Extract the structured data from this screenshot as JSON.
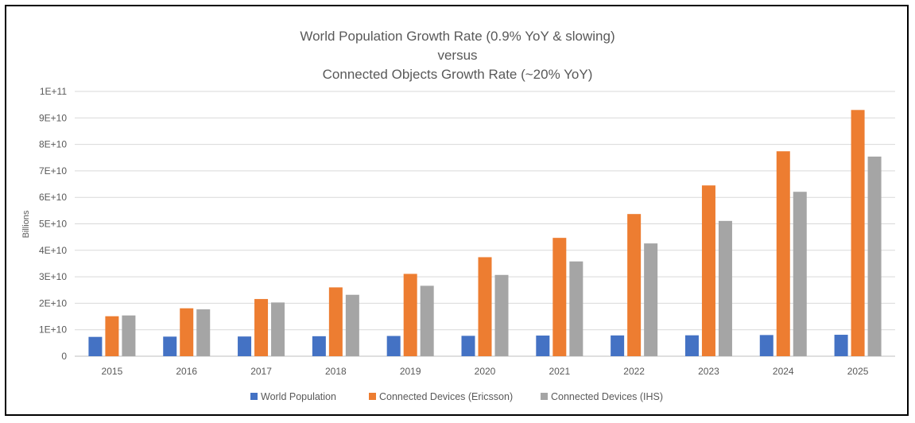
{
  "chart_data": {
    "type": "bar",
    "title_lines": [
      "World Population Growth Rate (0.9% YoY & slowing)",
      "versus",
      "Connected Objects Growth Rate (~20% YoY)"
    ],
    "xlabel": "",
    "ylabel": "Billions",
    "ylim": [
      0,
      100000000000
    ],
    "yticks": [
      0,
      10000000000,
      20000000000,
      30000000000,
      40000000000,
      50000000000,
      60000000000,
      70000000000,
      80000000000,
      90000000000,
      100000000000
    ],
    "ytick_labels": [
      "0",
      "1E+10",
      "2E+10",
      "3E+10",
      "4E+10",
      "5E+10",
      "6E+10",
      "7E+10",
      "8E+10",
      "9E+10",
      "1E+11"
    ],
    "grid": true,
    "legend_position": "bottom",
    "categories": [
      "2015",
      "2016",
      "2017",
      "2018",
      "2019",
      "2020",
      "2021",
      "2022",
      "2023",
      "2024",
      "2025"
    ],
    "series": [
      {
        "name": "World Population",
        "color": "#4472c4",
        "values": [
          7300000000,
          7400000000,
          7450000000,
          7550000000,
          7650000000,
          7700000000,
          7800000000,
          7850000000,
          7900000000,
          8000000000,
          8100000000
        ]
      },
      {
        "name": "Connected Devices (Ericsson)",
        "color": "#ed7d31",
        "values": [
          15100000000,
          18100000000,
          21600000000,
          26000000000,
          31100000000,
          37400000000,
          44700000000,
          53700000000,
          64500000000,
          77400000000,
          93000000000
        ]
      },
      {
        "name": "Connected Devices (IHS)",
        "color": "#a5a5a5",
        "values": [
          15400000000,
          17700000000,
          20300000000,
          23200000000,
          26600000000,
          30700000000,
          35800000000,
          42600000000,
          51100000000,
          62100000000,
          75400000000
        ]
      }
    ]
  }
}
